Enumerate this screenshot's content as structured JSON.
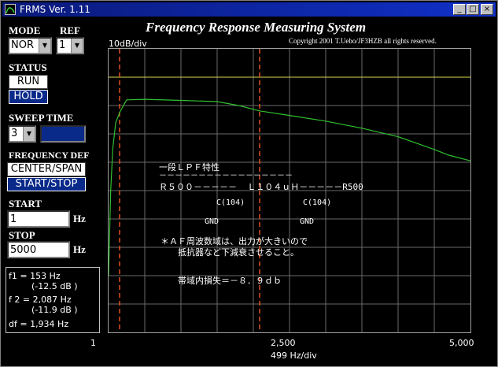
{
  "window": {
    "title": "FRMS  Ver. 1.11"
  },
  "controls": {
    "mode_label": "MODE",
    "mode_value": "NOR",
    "ref_label": "REF",
    "ref_value": "1",
    "status_label": "STATUS",
    "run_label": "RUN",
    "hold_label": "HOLD",
    "sweep_label": "SWEEP TIME",
    "sweep_value": "3",
    "freq_def_label": "FREQUENCY DEF",
    "center_span_label": "CENTER/SPAN",
    "start_stop_label": "START/STOP",
    "start_label": "START",
    "start_value": "1",
    "start_unit": "Hz",
    "stop_label": "STOP",
    "stop_value": "5000",
    "stop_unit": "Hz"
  },
  "info": {
    "f1": "f1 = 153 Hz",
    "f1_db": "(-12.5 dB )",
    "f2": "f 2 = 2,087 Hz",
    "f2_db": "(-11.9 dB )",
    "df": "df = 1,934 Hz"
  },
  "plot": {
    "title": "Frequency Response Measuring System",
    "copyright": "Copyright 2001 T.Uebo/JF3HZB all rights reserved.",
    "y_scale": "10dB/div",
    "x_scale": "499 Hz/div",
    "x_tick_labels": [
      "1",
      "2,500",
      "5,000"
    ]
  },
  "annotations": {
    "line1": "一段ＬＰＦ特性",
    "line2": "－－－－－－－－－－－－－－－－－",
    "line3": "Ｒ５００－－－－－  Ｌ１０４ｕＨ－－－－－R500",
    "c1": "C(104)",
    "c2": "C(104)",
    "gnd1": "GND",
    "gnd2": "GND",
    "line4": "＊ＡＦ周波数域は、出力が大きいので",
    "line5": "抵抗器など下減衰させること。",
    "line6": "帯域内損失＝－８．９ｄｂ"
  },
  "chart_data": {
    "type": "line",
    "xlabel": "499 Hz/div",
    "ylabel": "10dB/div",
    "xlim": [
      1,
      5000
    ],
    "ylim": [
      -90,
      10
    ],
    "grid": true,
    "series": [
      {
        "x": [
          1,
          30,
          60,
          100,
          153,
          250,
          500,
          1000,
          1500,
          1800,
          2087,
          2500,
          3000,
          3500,
          4000,
          4200,
          4500,
          4700,
          5000
        ],
        "values": [
          -70,
          -40,
          -25,
          -16,
          -12.5,
          -8,
          -7.8,
          -8.2,
          -8.6,
          -10,
          -11.9,
          -13.5,
          -15.5,
          -18,
          -21,
          -22.8,
          -25.5,
          -27.5,
          -29.5
        ]
      }
    ],
    "reference_line": {
      "y": 0
    },
    "markers": [
      {
        "label": "f1",
        "x": 153,
        "y": -12.5
      },
      {
        "label": "f2",
        "x": 2087,
        "y": -11.9
      }
    ],
    "colors": {
      "trace": "#30c030",
      "reference": "#d8d850",
      "marker": "#e05020",
      "grid": "#6a6a6a"
    }
  }
}
